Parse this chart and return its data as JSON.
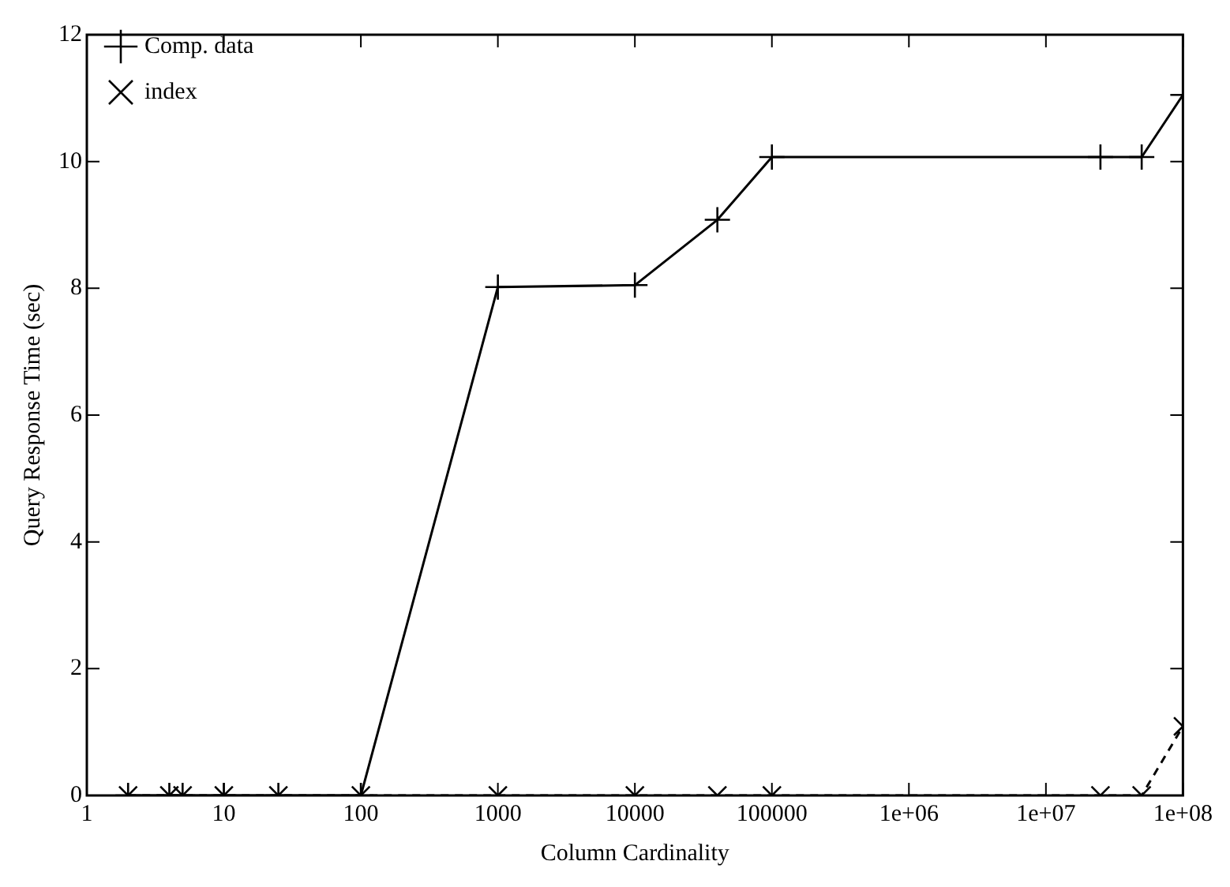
{
  "chart_data": {
    "type": "line",
    "xlabel": "Column Cardinality",
    "ylabel": "Query Response Time (sec)",
    "x": [
      2,
      4,
      5,
      10,
      25,
      100,
      1000,
      10000,
      40000,
      100000,
      25000000,
      50000000,
      100000000
    ],
    "series": [
      {
        "name": "Comp. data",
        "color": "#000000",
        "marker": "cross",
        "line_style": "solid",
        "values": [
          0,
          0,
          0,
          0,
          0,
          0,
          8.02,
          8.05,
          9.08,
          10.07,
          10.07,
          10.07,
          11.05
        ]
      },
      {
        "name": "index",
        "color": "#000000",
        "marker": "x",
        "line_style": "dashed",
        "values": [
          0,
          0,
          0,
          0,
          0,
          0,
          0,
          0,
          0,
          0,
          0,
          0,
          1.09
        ]
      }
    ],
    "log": "x",
    "xlim": [
      1,
      100000000
    ],
    "xticks": [
      1,
      10,
      100,
      1000,
      10000,
      100000,
      {
        "value": 1000000,
        "label": "1e+06"
      },
      {
        "value": 10000000,
        "label": "1e+07"
      },
      {
        "value": 100000000,
        "label": "1e+08"
      }
    ],
    "ylim": [
      0,
      12
    ],
    "yticks": [
      0,
      2,
      4,
      6,
      8,
      10,
      12
    ],
    "grid": false,
    "legend": "top left"
  }
}
